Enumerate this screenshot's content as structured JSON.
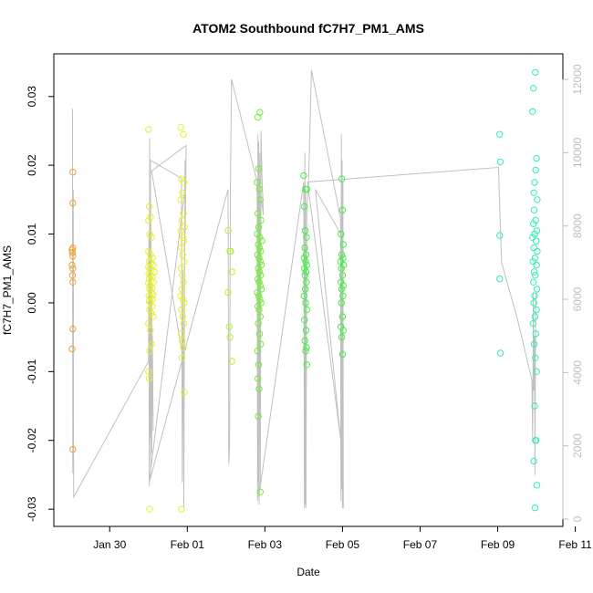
{
  "chart_data": {
    "type": "scatter",
    "title": "ATOM2 Southbound fC7H7_PM1_AMS",
    "xlabel": "Date",
    "ylabel": "fC7H7_PM1_AMS",
    "x_tick_labels": [
      "Jan 30",
      "Feb 01",
      "Feb 03",
      "Feb 05",
      "Feb 07",
      "Feb 09",
      "Feb 11"
    ],
    "y_tick_labels": [
      "-0.03",
      "-0.02",
      "-0.01",
      "0.00",
      "0.01",
      "0.02",
      "0.03"
    ],
    "y2_tick_labels": [
      "0",
      "2000",
      "4000",
      "6000",
      "8000",
      "10000",
      "12000"
    ],
    "xlim_days": [
      -1.44,
      11.68
    ],
    "ylim": [
      -0.0325,
      0.0362
    ],
    "y2lim": [
      -200,
      12700
    ],
    "grid": false,
    "series_colors": {
      "orange": "#f0a030",
      "yellow": "#e6f030",
      "yellowgreen": "#b8f030",
      "green": "#70f030",
      "green2": "#40f040",
      "teal": "#30f0b0"
    },
    "secondary_line_color": "#c0c0c0",
    "scatter_groups": [
      {
        "color": "orange",
        "points": [
          [
            -0.95,
            0.019
          ],
          [
            -0.95,
            0.0145
          ],
          [
            -0.95,
            0.008
          ],
          [
            -0.97,
            0.0077
          ],
          [
            -0.96,
            0.0073
          ],
          [
            -0.95,
            0.0068
          ],
          [
            -0.97,
            0.0055
          ],
          [
            -0.95,
            0.005
          ],
          [
            -0.96,
            0.004
          ],
          [
            -0.95,
            0.003
          ],
          [
            -0.95,
            -0.0038
          ],
          [
            -0.97,
            -0.0067
          ],
          [
            -0.95,
            -0.0213
          ]
        ]
      },
      {
        "color": "yellow",
        "points": [
          [
            1.0,
            0.0252
          ],
          [
            1.02,
            0.014
          ],
          [
            1.05,
            0.0125
          ],
          [
            1.0,
            0.012
          ],
          [
            1.03,
            0.01
          ],
          [
            1.08,
            0.0095
          ],
          [
            1.0,
            0.0075
          ],
          [
            1.05,
            0.007
          ],
          [
            1.1,
            0.0065
          ],
          [
            1.02,
            0.006
          ],
          [
            1.06,
            0.0058
          ],
          [
            1.12,
            0.0055
          ],
          [
            1.0,
            0.0052
          ],
          [
            1.04,
            0.005
          ],
          [
            1.08,
            0.0048
          ],
          [
            1.15,
            0.0045
          ],
          [
            1.01,
            0.0042
          ],
          [
            1.05,
            0.004
          ],
          [
            1.1,
            0.0038
          ],
          [
            1.02,
            0.0035
          ],
          [
            1.07,
            0.0032
          ],
          [
            1.13,
            0.003
          ],
          [
            1.0,
            0.0028
          ],
          [
            1.04,
            0.0025
          ],
          [
            1.09,
            0.0022
          ],
          [
            1.03,
            0.002
          ],
          [
            1.08,
            0.0015
          ],
          [
            1.12,
            0.0012
          ],
          [
            1.01,
            0.001
          ],
          [
            1.06,
            0.0008
          ],
          [
            1.1,
            0.0005
          ],
          [
            1.02,
            0.0002
          ],
          [
            1.05,
            0.0
          ],
          [
            1.09,
            -0.0005
          ],
          [
            1.03,
            -0.001
          ],
          [
            1.07,
            -0.0015
          ],
          [
            1.12,
            -0.002
          ],
          [
            1.0,
            -0.003
          ],
          [
            1.05,
            -0.004
          ],
          [
            1.08,
            -0.006
          ],
          [
            1.03,
            -0.007
          ],
          [
            1.0,
            -0.01
          ],
          [
            1.02,
            -0.011
          ],
          [
            1.03,
            -0.03
          ]
        ]
      },
      {
        "color": "yellow",
        "points": [
          [
            1.83,
            0.0255
          ],
          [
            1.9,
            0.0245
          ],
          [
            1.85,
            0.018
          ],
          [
            1.92,
            0.0175
          ],
          [
            1.88,
            0.016
          ],
          [
            1.83,
            0.015
          ],
          [
            1.9,
            0.013
          ],
          [
            1.86,
            0.012
          ],
          [
            1.93,
            0.011
          ],
          [
            1.84,
            0.0105
          ],
          [
            1.89,
            0.0095
          ],
          [
            1.91,
            0.009
          ],
          [
            1.85,
            0.008
          ],
          [
            1.88,
            0.007
          ],
          [
            1.92,
            0.006
          ],
          [
            1.84,
            0.005
          ],
          [
            1.87,
            0.004
          ],
          [
            1.9,
            0.003
          ],
          [
            1.86,
            0.002
          ],
          [
            1.83,
            0.001
          ],
          [
            1.89,
            0.0005
          ],
          [
            1.92,
            0.0
          ],
          [
            1.85,
            -0.001
          ],
          [
            1.88,
            -0.002
          ],
          [
            1.91,
            -0.003
          ],
          [
            1.84,
            -0.0045
          ],
          [
            1.87,
            -0.0055
          ],
          [
            1.9,
            -0.0065
          ],
          [
            1.86,
            -0.008
          ],
          [
            1.92,
            -0.013
          ],
          [
            1.85,
            -0.03
          ]
        ]
      },
      {
        "color": "yellowgreen",
        "points": [
          [
            3.05,
            0.0105
          ],
          [
            3.1,
            0.0075
          ],
          [
            3.12,
            0.0075
          ],
          [
            3.15,
            0.0045
          ],
          [
            3.05,
            0.0015
          ],
          [
            3.08,
            -0.0035
          ],
          [
            3.1,
            -0.005
          ],
          [
            3.15,
            -0.0085
          ]
        ]
      },
      {
        "color": "green",
        "points": [
          [
            3.82,
            0.027
          ],
          [
            3.87,
            0.0277
          ],
          [
            3.84,
            0.0195
          ],
          [
            3.8,
            0.0175
          ],
          [
            3.86,
            0.0165
          ],
          [
            3.88,
            0.015
          ],
          [
            3.82,
            0.013
          ],
          [
            3.9,
            0.012
          ],
          [
            3.84,
            0.011
          ],
          [
            3.8,
            0.01
          ],
          [
            3.87,
            0.0095
          ],
          [
            3.92,
            0.009
          ],
          [
            3.83,
            0.0085
          ],
          [
            3.86,
            0.008
          ],
          [
            3.89,
            0.0075
          ],
          [
            3.81,
            0.007
          ],
          [
            3.85,
            0.0065
          ],
          [
            3.88,
            0.006
          ],
          [
            3.91,
            0.0055
          ],
          [
            3.83,
            0.005
          ],
          [
            3.86,
            0.0045
          ],
          [
            3.89,
            0.004
          ],
          [
            3.82,
            0.0035
          ],
          [
            3.85,
            0.003
          ],
          [
            3.88,
            0.0025
          ],
          [
            3.91,
            0.002
          ],
          [
            3.8,
            0.0015
          ],
          [
            3.84,
            0.001
          ],
          [
            3.87,
            0.0005
          ],
          [
            3.9,
            0.0
          ],
          [
            3.82,
            -0.0005
          ],
          [
            3.85,
            -0.001
          ],
          [
            3.88,
            -0.002
          ],
          [
            3.83,
            -0.003
          ],
          [
            3.86,
            -0.0045
          ],
          [
            3.89,
            -0.006
          ],
          [
            3.81,
            -0.007
          ],
          [
            3.84,
            -0.009
          ],
          [
            3.82,
            -0.011
          ],
          [
            3.85,
            -0.0125
          ],
          [
            3.83,
            -0.0165
          ],
          [
            3.88,
            -0.0275
          ]
        ]
      },
      {
        "color": "green2",
        "points": [
          [
            5.0,
            0.0185
          ],
          [
            5.05,
            0.0165
          ],
          [
            5.08,
            0.0165
          ],
          [
            5.02,
            0.014
          ],
          [
            5.04,
            0.0105
          ],
          [
            5.07,
            0.0095
          ],
          [
            5.03,
            0.008
          ],
          [
            5.06,
            0.007
          ],
          [
            5.01,
            0.0065
          ],
          [
            5.05,
            0.006
          ],
          [
            5.08,
            0.0055
          ],
          [
            5.02,
            0.005
          ],
          [
            5.06,
            0.0045
          ],
          [
            5.03,
            0.004
          ],
          [
            5.07,
            0.003
          ],
          [
            5.04,
            0.002
          ],
          [
            5.01,
            0.001
          ],
          [
            5.05,
            0.0
          ],
          [
            5.08,
            -0.001
          ],
          [
            5.02,
            -0.0025
          ],
          [
            5.06,
            -0.004
          ],
          [
            5.03,
            -0.0055
          ],
          [
            5.07,
            -0.0065
          ],
          [
            5.05,
            -0.007
          ],
          [
            5.08,
            -0.009
          ]
        ]
      },
      {
        "color": "green2",
        "points": [
          [
            5.98,
            0.018
          ],
          [
            6.0,
            0.0135
          ],
          [
            5.96,
            0.01
          ],
          [
            6.02,
            0.0085
          ],
          [
            5.98,
            0.007
          ],
          [
            6.01,
            0.0065
          ],
          [
            5.95,
            0.006
          ],
          [
            6.03,
            0.0055
          ],
          [
            5.97,
            0.005
          ],
          [
            6.0,
            0.004
          ],
          [
            5.96,
            0.003
          ],
          [
            6.02,
            0.0025
          ],
          [
            5.98,
            0.002
          ],
          [
            6.01,
            0.001
          ],
          [
            5.97,
            0.0
          ],
          [
            6.0,
            -0.002
          ],
          [
            5.96,
            -0.0035
          ],
          [
            6.02,
            -0.004
          ],
          [
            5.98,
            -0.005
          ],
          [
            6.0,
            -0.0075
          ]
        ]
      },
      {
        "color": "teal",
        "points": [
          [
            10.05,
            0.0245
          ],
          [
            10.07,
            0.0205
          ],
          [
            10.05,
            0.0098
          ],
          [
            10.05,
            0.0035
          ],
          [
            10.07,
            -0.0073
          ]
        ]
      },
      {
        "color": "teal",
        "points": [
          [
            10.97,
            0.0335
          ],
          [
            10.92,
            0.0312
          ],
          [
            10.9,
            0.0278
          ],
          [
            11.0,
            0.021
          ],
          [
            10.98,
            0.0193
          ],
          [
            10.95,
            0.0175
          ],
          [
            10.93,
            0.016
          ],
          [
            11.02,
            0.015
          ],
          [
            10.94,
            0.0135
          ],
          [
            10.98,
            0.012
          ],
          [
            10.92,
            0.0115
          ],
          [
            11.01,
            0.0105
          ],
          [
            10.95,
            0.01
          ],
          [
            10.9,
            0.0095
          ],
          [
            10.99,
            0.009
          ],
          [
            10.93,
            0.008
          ],
          [
            11.02,
            0.0075
          ],
          [
            10.96,
            0.0065
          ],
          [
            10.91,
            0.006
          ],
          [
            11.0,
            0.0055
          ],
          [
            10.94,
            0.0045
          ],
          [
            10.97,
            0.004
          ],
          [
            10.92,
            0.003
          ],
          [
            11.01,
            0.002
          ],
          [
            10.95,
            0.001
          ],
          [
            10.93,
            0.0
          ],
          [
            11.0,
            -0.001
          ],
          [
            10.96,
            -0.002
          ],
          [
            10.91,
            -0.003
          ],
          [
            10.98,
            -0.0045
          ],
          [
            10.94,
            -0.006
          ],
          [
            10.97,
            -0.008
          ],
          [
            11.0,
            -0.01
          ],
          [
            10.95,
            -0.015
          ],
          [
            10.97,
            -0.02
          ],
          [
            10.99,
            -0.02
          ],
          [
            10.93,
            -0.023
          ],
          [
            11.01,
            -0.0265
          ],
          [
            10.96,
            -0.0298
          ]
        ]
      }
    ],
    "secondary_line": [
      [
        -0.95,
        1250
      ],
      [
        -0.96,
        11200
      ],
      [
        -0.95,
        3500
      ],
      [
        -0.94,
        9000
      ],
      [
        -0.93,
        600
      ],
      [
        1.0,
        4300
      ],
      [
        1.01,
        7800
      ],
      [
        1.02,
        900
      ],
      [
        1.03,
        10400
      ],
      [
        1.04,
        2200
      ],
      [
        1.05,
        9800
      ],
      [
        1.06,
        1400
      ],
      [
        1.07,
        7200
      ],
      [
        1.08,
        1800
      ],
      [
        1.1,
        5000
      ],
      [
        1.12,
        2400
      ],
      [
        1.04,
        9800
      ],
      [
        1.85,
        9300
      ],
      [
        1.87,
        1000
      ],
      [
        1.89,
        6800
      ],
      [
        1.91,
        300
      ],
      [
        1.93,
        7000
      ],
      [
        1.95,
        8200
      ],
      [
        1.97,
        10200
      ],
      [
        1.08,
        9500
      ],
      [
        1.92,
        4200
      ],
      [
        1.94,
        9800
      ],
      [
        1.96,
        9200
      ],
      [
        1.02,
        1000
      ],
      [
        3.05,
        9000
      ],
      [
        3.07,
        1500
      ],
      [
        3.09,
        2000
      ],
      [
        3.11,
        9000
      ],
      [
        3.14,
        12000
      ],
      [
        3.8,
        9200
      ],
      [
        3.81,
        500
      ],
      [
        3.82,
        10500
      ],
      [
        3.83,
        1000
      ],
      [
        3.84,
        10300
      ],
      [
        3.85,
        400
      ],
      [
        3.87,
        10000
      ],
      [
        3.88,
        800
      ],
      [
        3.9,
        10600
      ],
      [
        3.93,
        9200
      ],
      [
        3.96,
        8300
      ],
      [
        3.82,
        9500
      ],
      [
        3.84,
        600
      ],
      [
        5.0,
        9200
      ],
      [
        5.02,
        300
      ],
      [
        5.03,
        10000
      ],
      [
        5.04,
        400
      ],
      [
        5.05,
        9000
      ],
      [
        5.06,
        300
      ],
      [
        5.08,
        8500
      ],
      [
        5.12,
        9000
      ],
      [
        5.2,
        12250
      ],
      [
        5.95,
        8200
      ],
      [
        5.96,
        500
      ],
      [
        5.97,
        10500
      ],
      [
        5.98,
        800
      ],
      [
        5.99,
        9800
      ],
      [
        6.0,
        300
      ],
      [
        6.01,
        9200
      ],
      [
        6.02,
        300
      ],
      [
        6.0,
        7700
      ],
      [
        5.3,
        9000
      ],
      [
        5.95,
        2200
      ],
      [
        5.1,
        9200
      ],
      [
        10.02,
        9600
      ],
      [
        10.05,
        8600
      ],
      [
        10.1,
        7000
      ],
      [
        10.5,
        5500
      ],
      [
        10.88,
        3800
      ],
      [
        10.9,
        2200
      ],
      [
        10.92,
        6200
      ],
      [
        10.93,
        3500
      ],
      [
        10.95,
        5000
      ],
      [
        10.96,
        1200
      ],
      [
        10.98,
        6000
      ],
      [
        11.0,
        6200
      ]
    ]
  }
}
